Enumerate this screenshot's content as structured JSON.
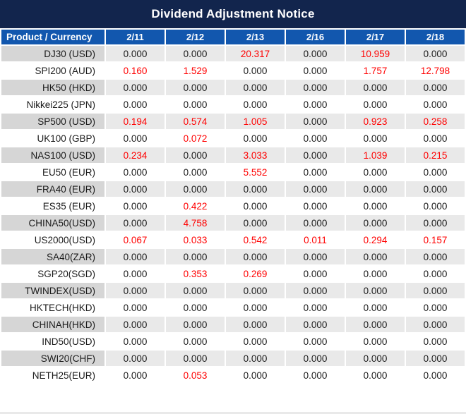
{
  "title_bar": {
    "title": "Dividend Adjustment Notice"
  },
  "colors": {
    "title_background": "#12254d",
    "header_background": "#1257ae",
    "row_product_gray": "#d6d6d6",
    "row_value_gray": "#e9e9e9",
    "text_dark": "#1b1b1b",
    "nonzero_value_red": "#ff0000"
  },
  "chart_data": {
    "type": "table",
    "title": "Dividend Adjustment Notice",
    "columns": [
      "Product / Currency",
      "2/11",
      "2/12",
      "2/13",
      "2/16",
      "2/17",
      "2/18"
    ],
    "value_color_rule": "non-zero values rendered in red, zero values in dark gray/black",
    "rows": [
      {
        "product": "DJ30 (USD)",
        "values": [
          "0.000",
          "0.000",
          "20.317",
          "0.000",
          "10.959",
          "0.000"
        ]
      },
      {
        "product": "SPI200 (AUD)",
        "values": [
          "0.160",
          "1.529",
          "0.000",
          "0.000",
          "1.757",
          "12.798"
        ]
      },
      {
        "product": "HK50 (HKD)",
        "values": [
          "0.000",
          "0.000",
          "0.000",
          "0.000",
          "0.000",
          "0.000"
        ]
      },
      {
        "product": "Nikkei225 (JPN)",
        "values": [
          "0.000",
          "0.000",
          "0.000",
          "0.000",
          "0.000",
          "0.000"
        ]
      },
      {
        "product": "SP500 (USD)",
        "values": [
          "0.194",
          "0.574",
          "1.005",
          "0.000",
          "0.923",
          "0.258"
        ]
      },
      {
        "product": "UK100 (GBP)",
        "values": [
          "0.000",
          "0.072",
          "0.000",
          "0.000",
          "0.000",
          "0.000"
        ]
      },
      {
        "product": "NAS100 (USD)",
        "values": [
          "0.234",
          "0.000",
          "3.033",
          "0.000",
          "1.039",
          "0.215"
        ]
      },
      {
        "product": "EU50 (EUR)",
        "values": [
          "0.000",
          "0.000",
          "5.552",
          "0.000",
          "0.000",
          "0.000"
        ]
      },
      {
        "product": "FRA40 (EUR)",
        "values": [
          "0.000",
          "0.000",
          "0.000",
          "0.000",
          "0.000",
          "0.000"
        ]
      },
      {
        "product": "ES35 (EUR)",
        "values": [
          "0.000",
          "0.422",
          "0.000",
          "0.000",
          "0.000",
          "0.000"
        ]
      },
      {
        "product": "CHINA50(USD)",
        "values": [
          "0.000",
          "4.758",
          "0.000",
          "0.000",
          "0.000",
          "0.000"
        ]
      },
      {
        "product": "US2000(USD)",
        "values": [
          "0.067",
          "0.033",
          "0.542",
          "0.011",
          "0.294",
          "0.157"
        ]
      },
      {
        "product": "SA40(ZAR)",
        "values": [
          "0.000",
          "0.000",
          "0.000",
          "0.000",
          "0.000",
          "0.000"
        ]
      },
      {
        "product": "SGP20(SGD)",
        "values": [
          "0.000",
          "0.353",
          "0.269",
          "0.000",
          "0.000",
          "0.000"
        ]
      },
      {
        "product": "TWINDEX(USD)",
        "values": [
          "0.000",
          "0.000",
          "0.000",
          "0.000",
          "0.000",
          "0.000"
        ]
      },
      {
        "product": "HKTECH(HKD)",
        "values": [
          "0.000",
          "0.000",
          "0.000",
          "0.000",
          "0.000",
          "0.000"
        ]
      },
      {
        "product": "CHINAH(HKD)",
        "values": [
          "0.000",
          "0.000",
          "0.000",
          "0.000",
          "0.000",
          "0.000"
        ]
      },
      {
        "product": "IND50(USD)",
        "values": [
          "0.000",
          "0.000",
          "0.000",
          "0.000",
          "0.000",
          "0.000"
        ]
      },
      {
        "product": "SWI20(CHF)",
        "values": [
          "0.000",
          "0.000",
          "0.000",
          "0.000",
          "0.000",
          "0.000"
        ]
      },
      {
        "product": "NETH25(EUR)",
        "values": [
          "0.000",
          "0.053",
          "0.000",
          "0.000",
          "0.000",
          "0.000"
        ]
      }
    ]
  }
}
